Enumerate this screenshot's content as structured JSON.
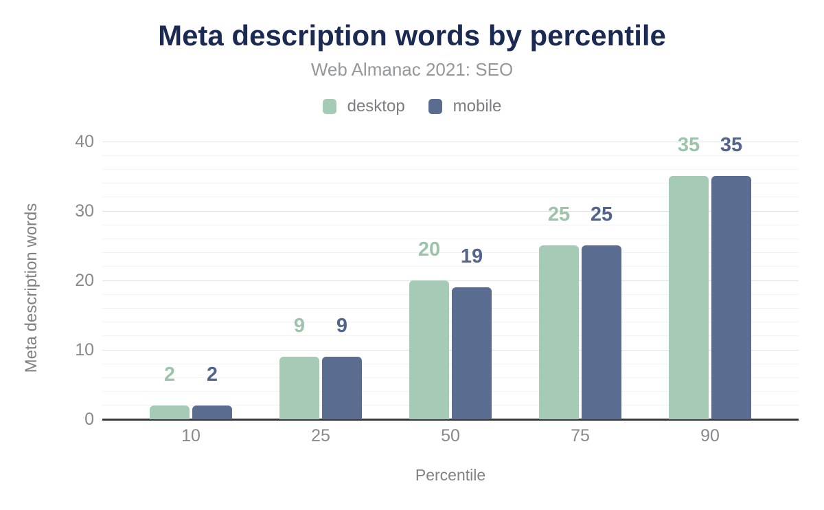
{
  "chart_data": {
    "type": "bar",
    "title": "Meta description words by percentile",
    "subtitle": "Web Almanac 2021: SEO",
    "xlabel": "Percentile",
    "ylabel": "Meta description words",
    "categories": [
      "10",
      "25",
      "50",
      "75",
      "90"
    ],
    "series": [
      {
        "name": "desktop",
        "color": "#a5cab5",
        "label_color": "#9dc4ab",
        "values": [
          2,
          9,
          20,
          25,
          35
        ]
      },
      {
        "name": "mobile",
        "color": "#5a6c8f",
        "label_color": "#52648a",
        "values": [
          2,
          9,
          19,
          25,
          35
        ]
      }
    ],
    "ylim": [
      0,
      40
    ],
    "yticks": [
      0,
      10,
      20,
      30,
      40
    ],
    "minor_grid_step": 2,
    "grid": true,
    "legend_position": "top",
    "value_labels": true
  },
  "colors": {
    "title": "#1b2a52",
    "subtitle": "#95989b",
    "axis_title": "#7f8184",
    "tick_label": "#87898c",
    "grid_major": "#e2e2e2",
    "grid_minor": "#f3f3f3",
    "axis_line": "#36383b",
    "background": "#ffffff"
  }
}
